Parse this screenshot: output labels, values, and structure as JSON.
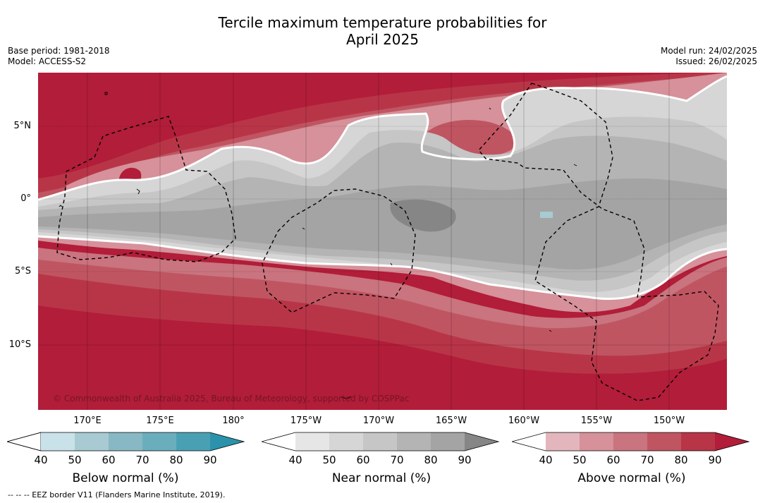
{
  "title_line1": "Tercile maximum temperature probabilities for",
  "title_line2": "April 2025",
  "base_period": "Base period: 1981-2018",
  "model": "Model: ACCESS-S2",
  "model_run": "Model run: 24/02/2025",
  "issued": "Issued: 26/02/2025",
  "lat_labels": [
    "5°N",
    "0°",
    "5°S",
    "10°S"
  ],
  "lon_labels": [
    "170°E",
    "175°E",
    "180°",
    "175°W",
    "170°W",
    "165°W",
    "160°W",
    "155°W",
    "150°W"
  ],
  "copyright": "© Commonwealth of Australia 2025, Bureau of Meteorology, supported by COSPPac",
  "footer": "-- -- -- EEZ border V11 (Flanders Marine Institute, 2019).",
  "colorbars": [
    {
      "label": "Below normal (%)",
      "ticks": [
        "40",
        "50",
        "60",
        "70",
        "80",
        "90"
      ],
      "colors": [
        "#ffffff",
        "#c9e1e8",
        "#a8cad2",
        "#88b8c4",
        "#6aaebd",
        "#4aa0b3",
        "#2b92ab"
      ]
    },
    {
      "label": "Near normal (%)",
      "ticks": [
        "40",
        "50",
        "60",
        "70",
        "80",
        "90"
      ],
      "colors": [
        "#ffffff",
        "#e6e6e6",
        "#d6d6d6",
        "#c6c6c6",
        "#b4b4b4",
        "#a4a4a4",
        "#868686"
      ]
    },
    {
      "label": "Above normal (%)",
      "ticks": [
        "40",
        "50",
        "60",
        "70",
        "80",
        "90"
      ],
      "colors": [
        "#ffffff",
        "#e2b6bc",
        "#d6919a",
        "#c9747f",
        "#c05562",
        "#b83547",
        "#b21d39"
      ]
    }
  ],
  "map_colors": {
    "above_90": "#b21d39",
    "above_80": "#b83547",
    "above_70": "#c05562",
    "above_60": "#c9747f",
    "above_50": "#d6919a",
    "near_50": "#d6d6d6",
    "near_60": "#c6c6c6",
    "near_70": "#b4b4b4",
    "near_80": "#a4a4a4",
    "near_90": "#868686",
    "below_50": "#a8cad2"
  }
}
